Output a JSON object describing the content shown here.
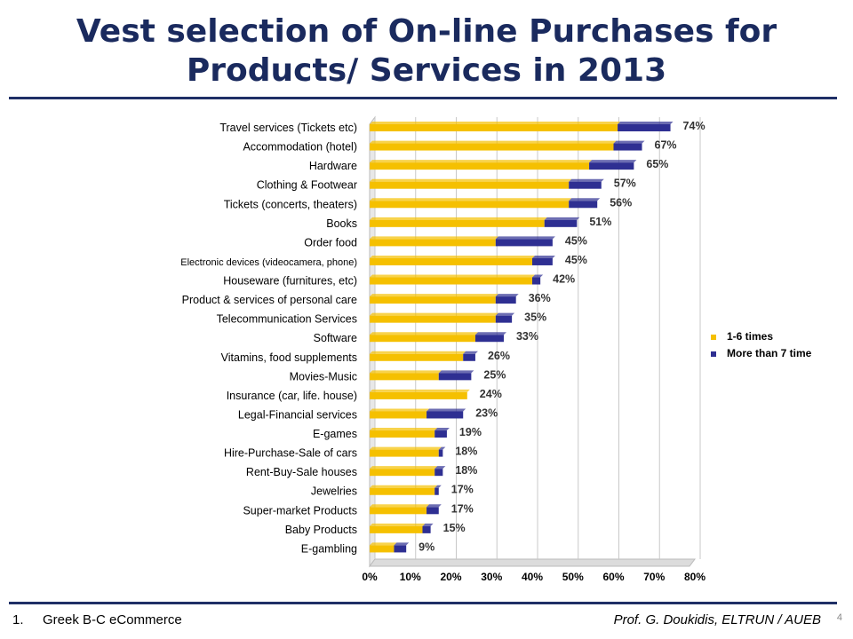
{
  "slide": {
    "title_line1": "Vest selection of On-line Purchases for",
    "title_line2": "Products/ Services  in 2013",
    "footer_number": "1.",
    "footer_left": "Greek B-C eCommerce",
    "footer_right": "Prof. G. Doukidis, ELTRUN / AUEB",
    "page_number": "4"
  },
  "colors": {
    "series1": "#f5c000",
    "series2": "#2e2f92",
    "title": "#1a2a5e",
    "rule": "#1f2f66"
  },
  "chart_data": {
    "type": "bar",
    "orientation": "horizontal",
    "stacked": true,
    "categories": [
      "Travel services (Tickets etc)",
      "Accommodation (hotel)",
      "Hardware",
      "Clothing & Footwear",
      "Tickets (concerts, theaters)",
      "Books",
      "Order food",
      "Electronic devices (videocamera, phone)",
      "Houseware  (furnitures, etc)",
      "Product & services of personal care",
      "Telecommunication Services",
      "Software",
      "Vitamins, food supplements",
      "Movies-Music",
      "Insurance (car, life. house)",
      "Legal-Financial services",
      "E-games",
      "Hire-Purchase-Sale of cars",
      "Rent-Buy-Sale houses",
      "Jewelries",
      "Super-market Products",
      "Baby Products",
      "E-gambling"
    ],
    "series": [
      {
        "name": "1-6 times",
        "values": [
          61,
          60,
          54,
          49,
          49,
          43,
          31,
          40,
          40,
          31,
          31,
          26,
          23,
          17,
          24,
          14,
          16,
          17,
          16,
          16,
          14,
          13,
          6
        ]
      },
      {
        "name": "More than 7 time",
        "values": [
          13,
          7,
          11,
          8,
          7,
          8,
          14,
          5,
          2,
          5,
          4,
          7,
          3,
          8,
          0,
          9,
          3,
          1,
          2,
          1,
          3,
          2,
          3
        ]
      }
    ],
    "totals": [
      "74%",
      "67%",
      "65%",
      "57%",
      "56%",
      "51%",
      "45%",
      "45%",
      "42%",
      "36%",
      "35%",
      "33%",
      "26%",
      "25%",
      "24%",
      "23%",
      "19%",
      "18%",
      "18%",
      "17%",
      "17%",
      "15%",
      "9%"
    ],
    "xticks": [
      "0%",
      "10%",
      "20%",
      "30%",
      "40%",
      "50%",
      "60%",
      "70%",
      "80%"
    ],
    "xlim": [
      0,
      80
    ],
    "grid": true,
    "legend_position": "right"
  }
}
